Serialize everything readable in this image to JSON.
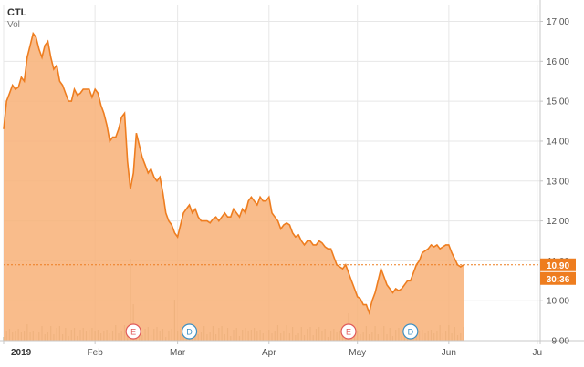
{
  "header": {
    "symbol": "CTL",
    "volume_label": "Vol"
  },
  "colors": {
    "line": "#ee7d1f",
    "area": "#f8b077",
    "volume": "#a9a98f",
    "grid": "#e7e7e7",
    "axis": "#c8c8c8",
    "flag": "#ee7d1f",
    "earnings_badge": "#e05a5a",
    "dividend_badge": "#3d8fc2"
  },
  "chart_data": {
    "type": "area",
    "title": "",
    "xlabel": "",
    "ylabel": "",
    "ylim": [
      9.0,
      17.4
    ],
    "y_ticks": [
      "17.00",
      "16.00",
      "15.00",
      "14.00",
      "13.00",
      "12.00",
      "11.00",
      "10.00",
      "9.00"
    ],
    "x_ticks": [
      {
        "label": "2019",
        "day": 0,
        "bold": true
      },
      {
        "label": "Feb",
        "day": 31
      },
      {
        "label": "Mar",
        "day": 59
      },
      {
        "label": "Apr",
        "day": 90
      },
      {
        "label": "May",
        "day": 120
      },
      {
        "label": "Jun",
        "day": 151
      },
      {
        "label": "Ju",
        "day": 181
      }
    ],
    "x_range_days": [
      0,
      182
    ],
    "grid": true,
    "series": [
      {
        "values": [
          [
            0,
            14.3
          ],
          [
            1,
            15.0
          ],
          [
            2,
            15.2
          ],
          [
            3,
            15.4
          ],
          [
            4,
            15.3
          ],
          [
            5,
            15.35
          ],
          [
            6,
            15.6
          ],
          [
            7,
            15.5
          ],
          [
            8,
            16.1
          ],
          [
            9,
            16.4
          ],
          [
            10,
            16.7
          ],
          [
            11,
            16.6
          ],
          [
            12,
            16.3
          ],
          [
            13,
            16.1
          ],
          [
            14,
            16.4
          ],
          [
            15,
            16.5
          ],
          [
            16,
            16.1
          ],
          [
            17,
            15.8
          ],
          [
            18,
            15.9
          ],
          [
            19,
            15.5
          ],
          [
            20,
            15.4
          ],
          [
            21,
            15.2
          ],
          [
            22,
            15.0
          ],
          [
            23,
            15.0
          ],
          [
            24,
            15.3
          ],
          [
            25,
            15.15
          ],
          [
            26,
            15.2
          ],
          [
            27,
            15.3
          ],
          [
            28,
            15.3
          ],
          [
            29,
            15.3
          ],
          [
            30,
            15.1
          ],
          [
            31,
            15.3
          ],
          [
            32,
            15.2
          ],
          [
            33,
            14.9
          ],
          [
            34,
            14.7
          ],
          [
            35,
            14.4
          ],
          [
            36,
            14.0
          ],
          [
            37,
            14.1
          ],
          [
            38,
            14.1
          ],
          [
            39,
            14.3
          ],
          [
            40,
            14.6
          ],
          [
            41,
            14.7
          ],
          [
            42,
            13.5
          ],
          [
            43,
            12.8
          ],
          [
            44,
            13.2
          ],
          [
            45,
            14.2
          ],
          [
            46,
            13.9
          ],
          [
            47,
            13.6
          ],
          [
            48,
            13.4
          ],
          [
            49,
            13.2
          ],
          [
            50,
            13.3
          ],
          [
            51,
            13.1
          ],
          [
            52,
            13.0
          ],
          [
            53,
            13.1
          ],
          [
            54,
            12.7
          ],
          [
            55,
            12.2
          ],
          [
            56,
            12.0
          ],
          [
            57,
            11.9
          ],
          [
            58,
            11.7
          ],
          [
            59,
            11.6
          ],
          [
            60,
            11.9
          ],
          [
            61,
            12.2
          ],
          [
            62,
            12.3
          ],
          [
            63,
            12.4
          ],
          [
            64,
            12.2
          ],
          [
            65,
            12.3
          ],
          [
            66,
            12.1
          ],
          [
            67,
            12.0
          ],
          [
            68,
            12.0
          ],
          [
            69,
            12.0
          ],
          [
            70,
            11.95
          ],
          [
            71,
            12.05
          ],
          [
            72,
            12.1
          ],
          [
            73,
            12.0
          ],
          [
            74,
            12.1
          ],
          [
            75,
            12.2
          ],
          [
            76,
            12.1
          ],
          [
            77,
            12.1
          ],
          [
            78,
            12.3
          ],
          [
            79,
            12.2
          ],
          [
            80,
            12.1
          ],
          [
            81,
            12.3
          ],
          [
            82,
            12.2
          ],
          [
            83,
            12.5
          ],
          [
            84,
            12.6
          ],
          [
            85,
            12.5
          ],
          [
            86,
            12.4
          ],
          [
            87,
            12.6
          ],
          [
            88,
            12.5
          ],
          [
            89,
            12.5
          ],
          [
            90,
            12.6
          ],
          [
            91,
            12.2
          ],
          [
            92,
            12.1
          ],
          [
            93,
            12.0
          ],
          [
            94,
            11.8
          ],
          [
            95,
            11.9
          ],
          [
            96,
            11.95
          ],
          [
            97,
            11.9
          ],
          [
            98,
            11.7
          ],
          [
            99,
            11.6
          ],
          [
            100,
            11.65
          ],
          [
            101,
            11.5
          ],
          [
            102,
            11.4
          ],
          [
            103,
            11.5
          ],
          [
            104,
            11.5
          ],
          [
            105,
            11.4
          ],
          [
            106,
            11.4
          ],
          [
            107,
            11.5
          ],
          [
            108,
            11.45
          ],
          [
            109,
            11.35
          ],
          [
            110,
            11.3
          ],
          [
            111,
            11.3
          ],
          [
            112,
            11.1
          ],
          [
            113,
            10.9
          ],
          [
            114,
            10.85
          ],
          [
            115,
            10.8
          ],
          [
            116,
            10.9
          ],
          [
            117,
            10.7
          ],
          [
            118,
            10.5
          ],
          [
            119,
            10.3
          ],
          [
            120,
            10.1
          ],
          [
            121,
            10.05
          ],
          [
            122,
            9.9
          ],
          [
            123,
            9.9
          ],
          [
            124,
            9.7
          ],
          [
            125,
            10.0
          ],
          [
            126,
            10.2
          ],
          [
            127,
            10.5
          ],
          [
            128,
            10.8
          ],
          [
            129,
            10.6
          ],
          [
            130,
            10.4
          ],
          [
            131,
            10.3
          ],
          [
            132,
            10.2
          ],
          [
            133,
            10.3
          ],
          [
            134,
            10.25
          ],
          [
            135,
            10.3
          ],
          [
            136,
            10.4
          ],
          [
            137,
            10.5
          ],
          [
            138,
            10.5
          ],
          [
            139,
            10.7
          ],
          [
            140,
            10.9
          ],
          [
            141,
            11.0
          ],
          [
            142,
            11.2
          ],
          [
            143,
            11.25
          ],
          [
            144,
            11.3
          ],
          [
            145,
            11.4
          ],
          [
            146,
            11.35
          ],
          [
            147,
            11.4
          ],
          [
            148,
            11.3
          ],
          [
            149,
            11.35
          ],
          [
            150,
            11.4
          ],
          [
            151,
            11.4
          ],
          [
            152,
            11.2
          ],
          [
            153,
            11.05
          ],
          [
            154,
            10.9
          ],
          [
            155,
            10.85
          ],
          [
            156,
            10.9
          ]
        ]
      }
    ],
    "last_price": "10.90",
    "countdown": "30:36",
    "event_markers": [
      {
        "label": "E",
        "kind": "earnings",
        "day": 44
      },
      {
        "label": "D",
        "kind": "dividend",
        "day": 63
      },
      {
        "label": "E",
        "kind": "earnings",
        "day": 117
      },
      {
        "label": "D",
        "kind": "dividend",
        "day": 138
      }
    ]
  }
}
